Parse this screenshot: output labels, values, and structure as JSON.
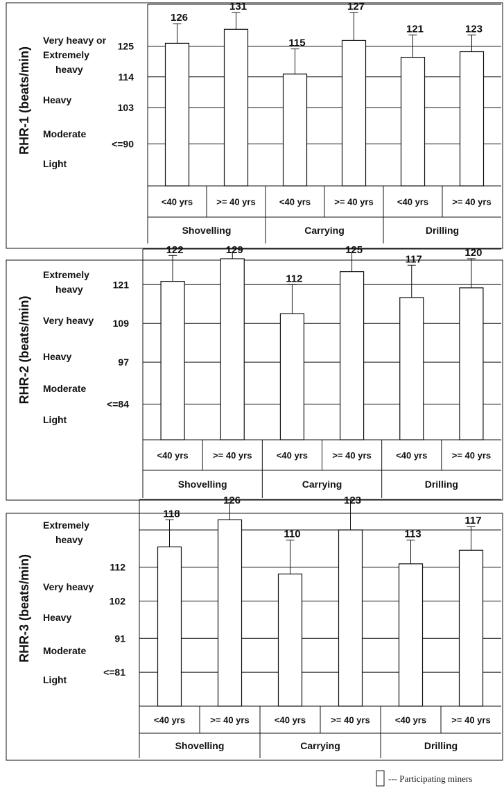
{
  "chart_data": [
    {
      "type": "bar",
      "ylabel": "RHR-1 (beats/min)",
      "groups": [
        "Shovelling",
        "Carrying",
        "Drilling"
      ],
      "categories": [
        "<40 yrs",
        ">= 40 yrs",
        "<40 yrs",
        ">= 40 yrs",
        "<40 yrs",
        ">= 40 yrs"
      ],
      "values": [
        126,
        131,
        115,
        127,
        121,
        123
      ],
      "value_labels": [
        "126",
        "131",
        "115",
        "127",
        "121",
        "123"
      ],
      "error_tops": [
        133,
        137,
        124,
        137,
        129,
        129
      ],
      "thresholds": [
        {
          "value": 90,
          "label": "<=90"
        },
        {
          "value": 103,
          "label": "103"
        },
        {
          "value": 114,
          "label": "114"
        },
        {
          "value": 125,
          "label": "125"
        }
      ],
      "zones": [
        "Light",
        "Moderate",
        "Heavy",
        "Very heavy or\nExtremely\nheavy"
      ],
      "ylim": [
        75,
        140
      ]
    },
    {
      "type": "bar",
      "ylabel": "RHR-2 (beats/min)",
      "groups": [
        "Shovelling",
        "Carrying",
        "Drilling"
      ],
      "categories": [
        "<40 yrs",
        ">= 40 yrs",
        "<40 yrs",
        ">= 40 yrs",
        "<40 yrs",
        ">= 40 yrs"
      ],
      "values": [
        122,
        129,
        112,
        125,
        117,
        120
      ],
      "value_labels": [
        "122",
        "129",
        "112",
        "125",
        "117",
        "120"
      ],
      "error_tops": [
        130,
        131,
        121,
        131,
        127,
        129
      ],
      "thresholds": [
        {
          "value": 84,
          "label": "<=84"
        },
        {
          "value": 97,
          "label": "97"
        },
        {
          "value": 109,
          "label": "109"
        },
        {
          "value": 121,
          "label": "121"
        }
      ],
      "zones": [
        "Light",
        "Moderate",
        "Heavy",
        "Very heavy",
        "Extremely\nheavy"
      ],
      "ylim": [
        73,
        132
      ]
    },
    {
      "type": "bar",
      "ylabel": "RHR-3 (beats/min)",
      "groups": [
        "Shovelling",
        "Carrying",
        "Drilling"
      ],
      "categories": [
        "<40 yrs",
        ">= 40 yrs",
        "<40 yrs",
        ">= 40 yrs",
        "<40 yrs",
        ">= 40 yrs"
      ],
      "values": [
        118,
        126,
        110,
        123,
        113,
        117
      ],
      "value_labels": [
        "118",
        "126",
        "110",
        "123",
        "113",
        "117"
      ],
      "error_tops": [
        126,
        131,
        120,
        132,
        120,
        124
      ],
      "thresholds": [
        {
          "value": 81,
          "label": "<=81"
        },
        {
          "value": 91,
          "label": "91"
        },
        {
          "value": 102,
          "label": "102"
        },
        {
          "value": 112,
          "label": "112"
        },
        {
          "value": 123,
          "label": ""
        }
      ],
      "zones": [
        "Light",
        "Moderate",
        "Heavy",
        "Very heavy",
        "Extremely\nheavy"
      ],
      "ylim": [
        71,
        132
      ]
    }
  ],
  "legend": {
    "label": "--- Participating miners"
  }
}
